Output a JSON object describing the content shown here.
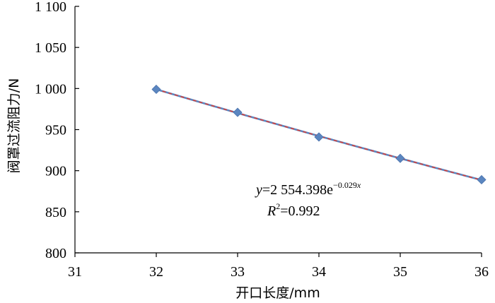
{
  "chart_data": {
    "type": "scatter",
    "title": "",
    "xlabel": "开口长度/mm",
    "ylabel": "阀罩过流阻力/N",
    "xlim": [
      31,
      36
    ],
    "ylim": [
      800,
      1100
    ],
    "x_ticks": [
      31,
      32,
      33,
      34,
      35,
      36
    ],
    "y_ticks": [
      800,
      850,
      900,
      950,
      1000,
      1050,
      1100
    ],
    "y_tick_labels": [
      "800",
      "850",
      "900",
      "950",
      "1 000",
      "1 050",
      "1 100"
    ],
    "grid": false,
    "legend": "none",
    "series": [
      {
        "x": [
          32,
          33,
          34,
          35,
          36
        ],
        "y": [
          999,
          971,
          941,
          915,
          889
        ],
        "marker": "diamond",
        "color": "#5b86c0"
      }
    ],
    "trendline": {
      "type": "exponential",
      "a": 2554.398,
      "b": -0.029,
      "colors": [
        "#5b86c0",
        "#d9403a"
      ]
    },
    "annotation": {
      "eq_y": "y",
      "eq_equals": "=2 554.398e",
      "eq_exponent": "−0.029",
      "eq_exp_var": "x",
      "r2_label": "R",
      "r2_sup": "2",
      "r2_value": "=0.992"
    }
  }
}
